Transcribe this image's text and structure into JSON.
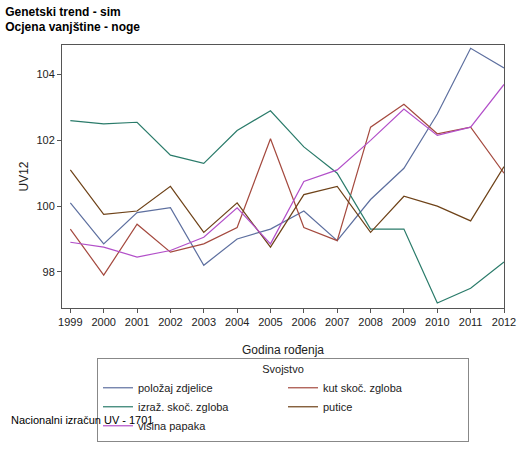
{
  "chart_data": {
    "type": "line",
    "title": "Genetski trend - sim",
    "subtitle": "Ocjena vanjštine - noge",
    "x_label": "Godina rođenja",
    "y_label": "UV12",
    "legend_title": "Svojstvo",
    "footnote": "Nacionalni izračun UV - 1701",
    "x": [
      1999,
      2000,
      2001,
      2002,
      2003,
      2004,
      2005,
      2006,
      2007,
      2008,
      2009,
      2010,
      2011,
      2012
    ],
    "series": [
      {
        "name": "položaj zdjelice",
        "color": "#5d6f9f",
        "values": [
          100.1,
          98.85,
          99.8,
          99.95,
          98.2,
          99.0,
          99.3,
          99.85,
          98.95,
          100.2,
          101.15,
          102.8,
          104.8,
          104.2
        ]
      },
      {
        "name": "kut skoč. zgloba",
        "color": "#a4493e",
        "values": [
          99.3,
          97.9,
          99.45,
          98.6,
          98.85,
          99.35,
          102.05,
          99.35,
          98.95,
          102.4,
          103.1,
          102.2,
          102.4,
          101.0
        ]
      },
      {
        "name": "izraž. skoč. zgloba",
        "color": "#2a7b6a",
        "values": [
          102.6,
          102.5,
          102.55,
          101.55,
          101.3,
          102.3,
          102.9,
          101.8,
          101.0,
          99.3,
          99.3,
          97.05,
          97.5,
          98.3
        ]
      },
      {
        "name": "putice",
        "color": "#6e4218",
        "values": [
          101.1,
          99.75,
          99.85,
          100.6,
          99.2,
          100.1,
          98.75,
          100.35,
          100.6,
          99.2,
          100.3,
          100.0,
          99.55,
          101.2
        ]
      },
      {
        "name": "visina papaka",
        "color": "#b24fc9",
        "values": [
          98.9,
          98.75,
          98.45,
          98.65,
          99.05,
          99.95,
          98.85,
          100.75,
          101.1,
          102.0,
          102.95,
          102.15,
          102.4,
          103.7
        ]
      }
    ],
    "xlim": [
      1998.75,
      2012
    ],
    "xticks": [
      1999,
      2000,
      2001,
      2002,
      2003,
      2004,
      2005,
      2006,
      2007,
      2008,
      2009,
      2010,
      2011,
      2012
    ],
    "ylim": [
      96.9,
      104.9
    ],
    "yticks": [
      98,
      100,
      102,
      104
    ],
    "grid": false,
    "legend": "bottom"
  }
}
